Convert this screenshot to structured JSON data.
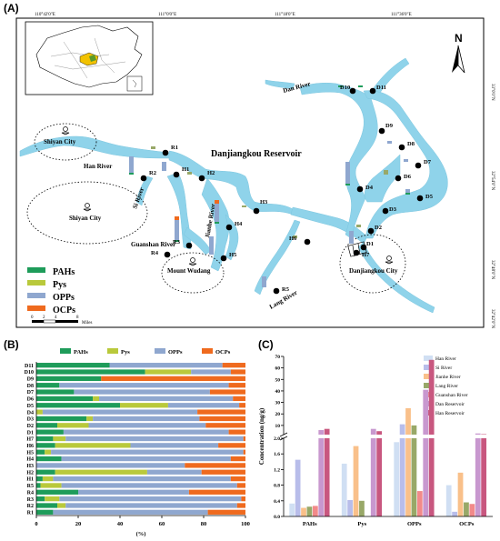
{
  "panels": {
    "a": "(A)",
    "b": "(B)",
    "c": "(C)"
  },
  "map": {
    "top_ticks": [
      "110°42'0\"E",
      "111°0'0\"E",
      "111°18'0\"E",
      "111°36'0\"E"
    ],
    "right_ticks": [
      "33°0'0\"N",
      "32°54'0\"N",
      "32°48'0\"N",
      "32°42'0\"N"
    ],
    "north": "N",
    "reservoir_title": "Danjiangkou Reservoir",
    "rivers": [
      "Han River",
      "Si River",
      "Jianhe River",
      "Guanshan River",
      "Lang River",
      "Dan River"
    ],
    "places": [
      "Shiyan City",
      "Shiyan City",
      "Mount Wudang",
      "Danjiangkou City"
    ],
    "sites": [
      "D10",
      "D11",
      "D9",
      "D8",
      "D7",
      "D6",
      "D5",
      "D4",
      "D3",
      "D2",
      "D1",
      "H7",
      "H6",
      "H5",
      "H4",
      "H3",
      "H2",
      "H1",
      "R1",
      "R2",
      "R3",
      "R4",
      "R5"
    ],
    "legend": [
      "PAHs",
      "Pys",
      "OPPs",
      "OCPs"
    ],
    "scale_numbers": [
      "0",
      "2",
      "4",
      "8"
    ],
    "scale_unit": "Miles",
    "colors": {
      "water": "#8fd3ea",
      "PAHs": "#1e9c5a",
      "Pys": "#b9c93b",
      "OPPs": "#8fa7cf",
      "OCPs": "#ef6a1e"
    }
  },
  "chart_data": [
    {
      "type": "bar",
      "orientation": "horizontal",
      "stacked": "percent",
      "legend_position": "top",
      "categories": [
        "D11",
        "D10",
        "D9",
        "D8",
        "D7",
        "D6",
        "D5",
        "D4",
        "D3",
        "D2",
        "D1",
        "H7",
        "H6",
        "H5",
        "H4",
        "H3",
        "H2",
        "H1",
        "R5",
        "R4",
        "R3",
        "R2",
        "R1"
      ],
      "series": [
        {
          "name": "PAHs",
          "color": "#1e9c5a",
          "values": [
            35,
            52,
            31,
            11,
            18,
            27,
            40,
            0,
            24,
            10,
            13,
            8,
            9,
            4,
            12,
            0,
            9,
            3,
            2,
            20,
            4,
            10,
            8
          ]
        },
        {
          "name": "Pys",
          "color": "#b9c93b",
          "values": [
            0,
            22,
            0,
            0,
            0,
            3,
            23,
            3,
            3,
            15,
            0,
            6,
            36,
            3,
            0,
            0,
            44,
            5,
            10,
            0,
            7,
            4,
            0
          ]
        },
        {
          "name": "OPPs",
          "color": "#8fa7cf",
          "values": [
            54,
            19,
            0,
            81,
            65,
            64,
            34,
            74,
            51,
            56,
            79,
            85,
            42,
            92,
            81,
            71,
            26,
            85,
            84,
            53,
            87,
            82,
            74
          ]
        },
        {
          "name": "OCPs",
          "color": "#ef6a1e",
          "values": [
            11,
            7,
            69,
            8,
            17,
            6,
            3,
            23,
            22,
            19,
            8,
            1,
            13,
            1,
            7,
            29,
            21,
            7,
            4,
            27,
            2,
            4,
            18
          ]
        }
      ],
      "xlabel": "(%)",
      "xlim": [
        0,
        100
      ],
      "xticks": [
        "0",
        "20",
        "40",
        "60",
        "80",
        "100"
      ]
    },
    {
      "type": "bar",
      "stacked": false,
      "broken_axis": true,
      "categories": [
        "PAHs",
        "Pys",
        "OPPs",
        "OCPs"
      ],
      "series": [
        {
          "name": "Han River",
          "color": "#d0dff3",
          "values": [
            0.33,
            1.35,
            1.9,
            0.8
          ]
        },
        {
          "name": "Si River",
          "color": "#b8bdea",
          "values": [
            1.45,
            0.42,
            11,
            0.12
          ]
        },
        {
          "name": "Jianhe River",
          "color": "#f9c08a",
          "values": [
            0.22,
            1.8,
            25,
            1.12
          ]
        },
        {
          "name": "Lang River",
          "color": "#98a868",
          "values": [
            0.25,
            0.4,
            10,
            0.36
          ]
        },
        {
          "name": "Guanshan River",
          "color": "#f28a8a",
          "values": [
            0.27,
            0,
            0.65,
            0.32
          ]
        },
        {
          "name": "Dan Reservoir",
          "color": "#c898cf",
          "values": [
            6,
            7,
            41,
            3
          ]
        },
        {
          "name": "Han Reservoir",
          "color": "#c8577f",
          "values": [
            7,
            5,
            67,
            2.4
          ]
        }
      ],
      "ylabel": "Concentration  (ng/g)",
      "lower_ticks": [
        "0.0",
        "0.4",
        "0.8",
        "1.2",
        "1.6",
        "2.0"
      ],
      "upper_ticks": [
        "10",
        "20",
        "30",
        "40",
        "50",
        "60",
        "70"
      ]
    }
  ]
}
